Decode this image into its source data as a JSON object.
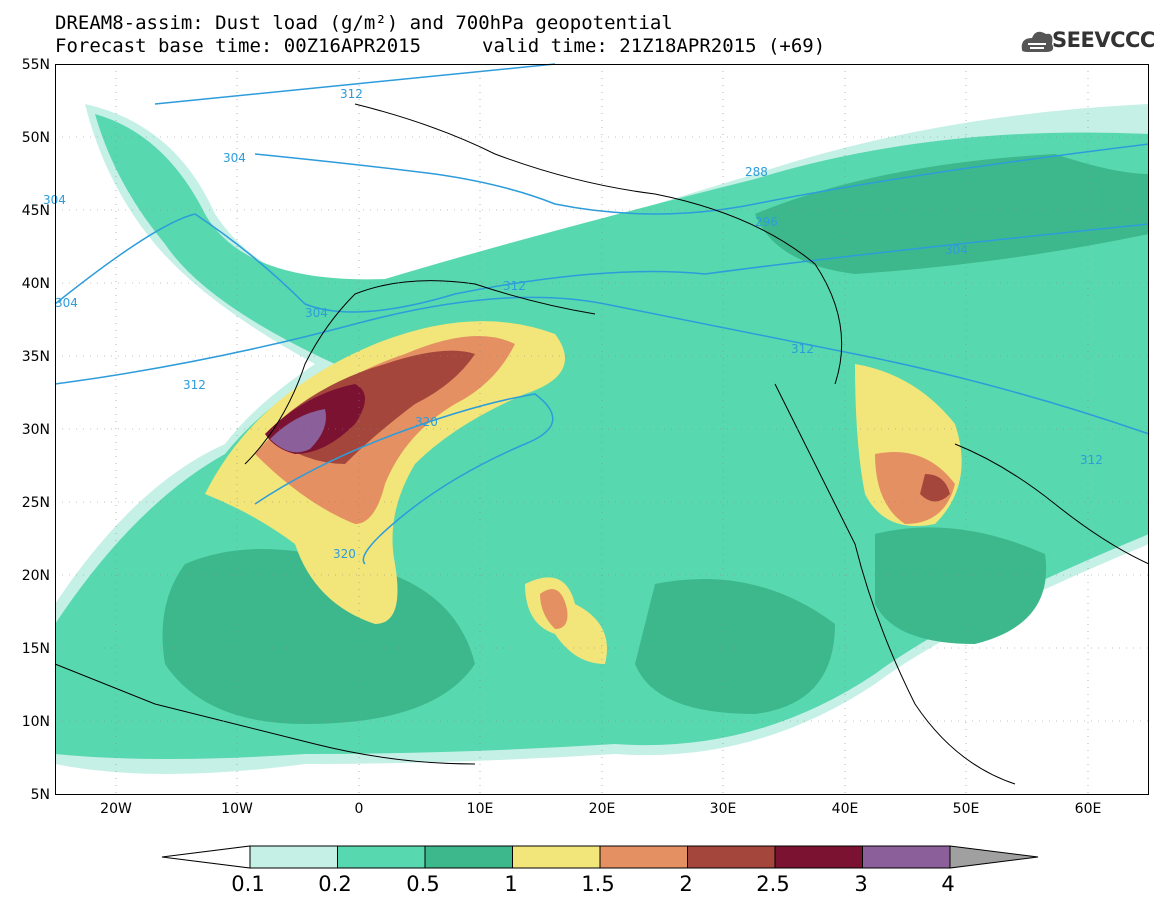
{
  "title": {
    "line1": "DREAM8-assim: Dust load (g/m²) and 700hPa geopotential",
    "line2_left": "Forecast base time: 00Z16APR2015",
    "line2_right": "valid time: 21Z18APR2015 (+69)"
  },
  "logo": {
    "text": "SEEVCCC",
    "icon": "cloud-logo-icon"
  },
  "axes": {
    "lat_labels": [
      "55N",
      "50N",
      "45N",
      "40N",
      "35N",
      "30N",
      "25N",
      "20N",
      "15N",
      "10N",
      "5N"
    ],
    "lon_labels": [
      "20W",
      "10W",
      "0",
      "10E",
      "20E",
      "30E",
      "40E",
      "50E",
      "60E"
    ]
  },
  "contours": {
    "labels": [
      "312",
      "304",
      "304",
      "304",
      "304",
      "288",
      "296",
      "304",
      "312",
      "312",
      "312",
      "320",
      "320",
      "312"
    ]
  },
  "colorbar": {
    "levels": [
      "0.1",
      "0.2",
      "0.5",
      "1",
      "1.5",
      "2",
      "2.5",
      "3",
      "4"
    ],
    "colors": [
      "#c5f0e6",
      "#58d8ae",
      "#3db88c",
      "#f2e67a",
      "#e59062",
      "#a5463c",
      "#7c1232",
      "#8a5f9a",
      "#a0a0a0"
    ]
  },
  "chart_data": {
    "type": "heatmap",
    "title": "DREAM8-assim: Dust load (g/m²) and 700hPa geopotential",
    "xlabel": "",
    "ylabel": "",
    "xlim": [
      -25,
      65
    ],
    "ylim": [
      5,
      55
    ],
    "levels": [
      0.1,
      0.2,
      0.5,
      1,
      1.5,
      2,
      2.5,
      3,
      4
    ],
    "grid": true
  }
}
